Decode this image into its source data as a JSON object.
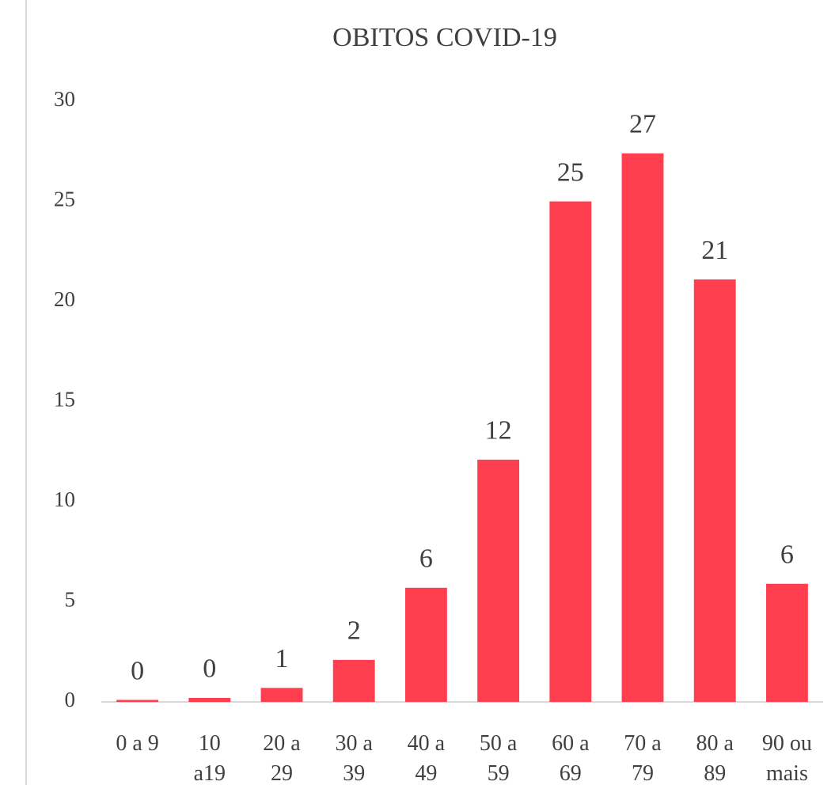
{
  "chart_data": {
    "type": "bar",
    "title": "OBITOS COVID-19",
    "categories": [
      [
        "0 a 9"
      ],
      [
        "10",
        "a19"
      ],
      [
        "20 a",
        "29"
      ],
      [
        "30 a",
        "39"
      ],
      [
        "40 a",
        "49"
      ],
      [
        "50 a",
        "59"
      ],
      [
        "60 a",
        "69"
      ],
      [
        "70 a",
        "79"
      ],
      [
        "80 a",
        "89"
      ],
      [
        "90 ou",
        "mais"
      ]
    ],
    "values": [
      0.1,
      0.2,
      0.7,
      2.1,
      5.7,
      12.1,
      25,
      27.4,
      21.1,
      5.9
    ],
    "value_labels": [
      "0",
      "0",
      "1",
      "2",
      "6",
      "12",
      "25",
      "27",
      "21",
      "6"
    ],
    "color": "#ff3f4f",
    "ylim": [
      0,
      30
    ],
    "yticks": [
      0,
      5,
      10,
      15,
      20,
      25,
      30
    ],
    "grid": false
  }
}
